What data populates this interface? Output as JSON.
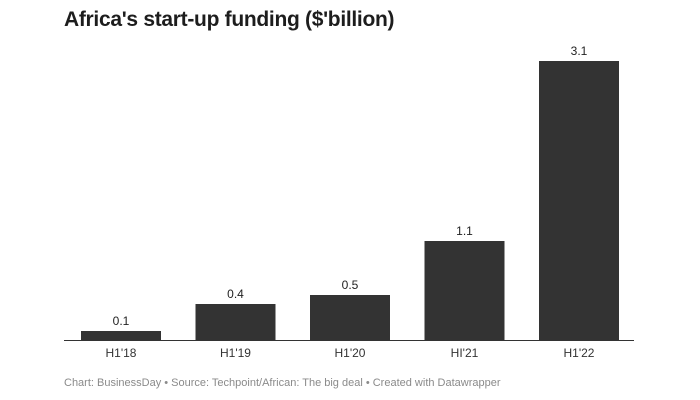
{
  "chart_data": {
    "type": "bar",
    "title": "Africa's start-up funding ($'billion)",
    "categories": [
      "H1'18",
      "H1'19",
      "H1'20",
      "HI'21",
      "H1'22"
    ],
    "values": [
      0.1,
      0.4,
      0.5,
      1.1,
      3.1
    ],
    "data_labels": [
      "0.1",
      "0.4",
      "0.5",
      "1.1",
      "3.1"
    ],
    "xlabel": "",
    "ylabel": "",
    "ylim": [
      0,
      3.1
    ],
    "grid": false,
    "bar_color": "#333333"
  },
  "footer": "Chart: BusinessDay • Source: Techpoint/African: The big deal • Created with Datawrapper"
}
